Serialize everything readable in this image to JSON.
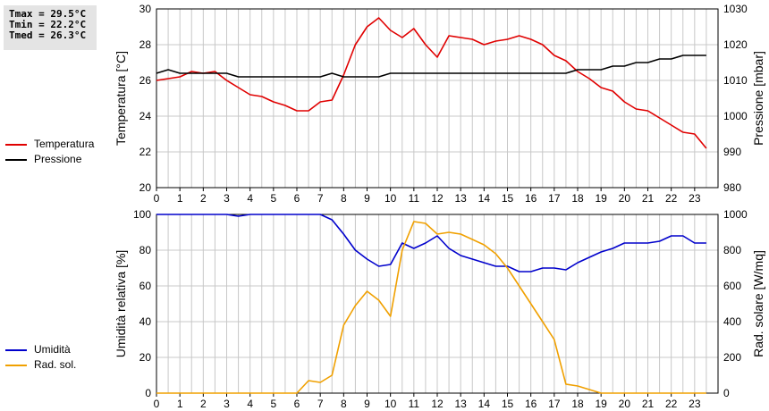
{
  "stats": {
    "tmax": "Tmax = 29.5°C",
    "tmin": "Tmin = 22.2°C",
    "tmed": "Tmed = 26.3°C"
  },
  "colors": {
    "temperature": "#e00000",
    "pressure": "#000000",
    "humidity": "#0000cc",
    "radiation": "#f0a000",
    "grid": "#c8c8c8"
  },
  "chart_data": [
    {
      "type": "line",
      "x_ticks": [
        0,
        1,
        2,
        3,
        4,
        5,
        6,
        7,
        8,
        9,
        10,
        11,
        12,
        13,
        14,
        15,
        16,
        17,
        18,
        19,
        20,
        21,
        22,
        23
      ],
      "xlim": [
        0,
        24
      ],
      "ylabel": "Temperatura [°C]",
      "ylim": [
        20,
        30
      ],
      "y_ticks": [
        20,
        22,
        24,
        26,
        28,
        30
      ],
      "y2label": "Pressione [mbar]",
      "y2lim": [
        980,
        1030
      ],
      "y2_ticks": [
        980,
        990,
        1000,
        1010,
        1020,
        1030
      ],
      "grid": true,
      "legend_position": "left",
      "series": [
        {
          "name": "Temperatura",
          "axis": "left",
          "x": [
            0,
            0.5,
            1,
            1.5,
            2,
            2.5,
            3,
            3.5,
            4,
            4.5,
            5,
            5.5,
            6,
            6.5,
            7,
            7.5,
            8,
            8.5,
            9,
            9.5,
            10,
            10.5,
            11,
            11.5,
            12,
            12.5,
            13,
            13.5,
            14,
            14.5,
            15,
            15.5,
            16,
            16.5,
            17,
            17.5,
            18,
            18.5,
            19,
            19.5,
            20,
            20.5,
            21,
            21.5,
            22,
            22.5,
            23,
            23.5
          ],
          "values": [
            26.0,
            26.1,
            26.2,
            26.5,
            26.4,
            26.5,
            26.0,
            25.6,
            25.2,
            25.1,
            24.8,
            24.6,
            24.3,
            24.3,
            24.8,
            24.9,
            26.3,
            28.0,
            29.0,
            29.5,
            28.8,
            28.4,
            28.9,
            28.0,
            27.3,
            28.5,
            28.4,
            28.3,
            28.0,
            28.2,
            28.3,
            28.5,
            28.3,
            28.0,
            27.4,
            27.1,
            26.5,
            26.1,
            25.6,
            25.4,
            24.8,
            24.4,
            24.3,
            23.9,
            23.5,
            23.1,
            23.0,
            22.2
          ]
        },
        {
          "name": "Pressione",
          "axis": "right",
          "x": [
            0,
            0.5,
            1,
            1.5,
            2,
            2.5,
            3,
            3.5,
            4,
            4.5,
            5,
            5.5,
            6,
            6.5,
            7,
            7.5,
            8,
            8.5,
            9,
            9.5,
            10,
            10.5,
            11,
            11.5,
            12,
            12.5,
            13,
            13.5,
            14,
            14.5,
            15,
            15.5,
            16,
            16.5,
            17,
            17.5,
            18,
            18.5,
            19,
            19.5,
            20,
            20.5,
            21,
            21.5,
            22,
            22.5,
            23,
            23.5
          ],
          "values": [
            1012,
            1013,
            1012,
            1012,
            1012,
            1012,
            1012,
            1011,
            1011,
            1011,
            1011,
            1011,
            1011,
            1011,
            1011,
            1012,
            1011,
            1011,
            1011,
            1011,
            1012,
            1012,
            1012,
            1012,
            1012,
            1012,
            1012,
            1012,
            1012,
            1012,
            1012,
            1012,
            1012,
            1012,
            1012,
            1012,
            1013,
            1013,
            1013,
            1014,
            1014,
            1015,
            1015,
            1016,
            1016,
            1017,
            1017,
            1017
          ]
        }
      ]
    },
    {
      "type": "line",
      "x_ticks": [
        0,
        1,
        2,
        3,
        4,
        5,
        6,
        7,
        8,
        9,
        10,
        11,
        12,
        13,
        14,
        15,
        16,
        17,
        18,
        19,
        20,
        21,
        22,
        23
      ],
      "xlim": [
        0,
        24
      ],
      "ylabel": "Umidità relativa [%]",
      "ylim": [
        0,
        100
      ],
      "y_ticks": [
        0,
        20,
        40,
        60,
        80,
        100
      ],
      "y2label": "Rad. solare [W/mq]",
      "y2lim": [
        0,
        1000
      ],
      "y2_ticks": [
        0,
        200,
        400,
        600,
        800,
        1000
      ],
      "grid": true,
      "legend_position": "left",
      "series": [
        {
          "name": "Umidità",
          "axis": "left",
          "x": [
            0,
            0.5,
            1,
            1.5,
            2,
            2.5,
            3,
            3.5,
            4,
            4.5,
            5,
            5.5,
            6,
            6.5,
            7,
            7.5,
            8,
            8.5,
            9,
            9.5,
            10,
            10.5,
            11,
            11.5,
            12,
            12.5,
            13,
            13.5,
            14,
            14.5,
            15,
            15.5,
            16,
            16.5,
            17,
            17.5,
            18,
            18.5,
            19,
            19.5,
            20,
            20.5,
            21,
            21.5,
            22,
            22.5,
            23,
            23.5
          ],
          "values": [
            100,
            100,
            100,
            100,
            100,
            100,
            100,
            99,
            100,
            100,
            100,
            100,
            100,
            100,
            100,
            97,
            89,
            80,
            75,
            71,
            72,
            84,
            81,
            84,
            88,
            81,
            77,
            75,
            73,
            71,
            71,
            68,
            68,
            70,
            70,
            69,
            73,
            76,
            79,
            81,
            84,
            84,
            84,
            85,
            88,
            88,
            84,
            84
          ]
        },
        {
          "name": "Rad. sol.",
          "axis": "right",
          "x": [
            0,
            0.5,
            1,
            1.5,
            2,
            2.5,
            3,
            3.5,
            4,
            4.5,
            5,
            5.5,
            6,
            6.5,
            7,
            7.5,
            8,
            8.5,
            9,
            9.5,
            10,
            10.5,
            11,
            11.5,
            12,
            12.5,
            13,
            13.5,
            14,
            14.5,
            15,
            15.5,
            16,
            16.5,
            17,
            17.5,
            18,
            18.5,
            19,
            19.5,
            20,
            20.5,
            21,
            21.5,
            22,
            22.5,
            23,
            23.5
          ],
          "values": [
            0,
            0,
            0,
            0,
            0,
            0,
            0,
            0,
            0,
            0,
            0,
            0,
            0,
            70,
            60,
            100,
            380,
            490,
            570,
            520,
            430,
            800,
            960,
            950,
            890,
            900,
            890,
            860,
            830,
            780,
            700,
            600,
            500,
            400,
            300,
            50,
            40,
            20,
            0,
            0,
            0,
            0,
            0,
            0,
            0,
            0,
            0,
            0
          ]
        }
      ]
    }
  ]
}
